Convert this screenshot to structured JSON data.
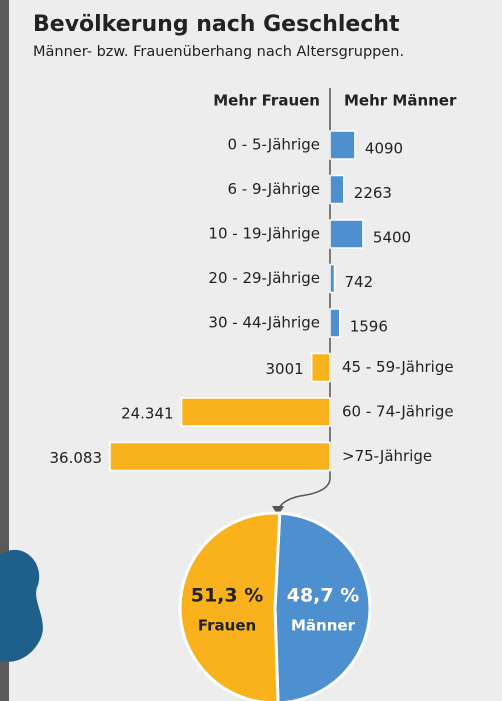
{
  "chart_data": [
    {
      "type": "diverging-bar",
      "title": "Bevölkerung nach Geschlecht",
      "subtitle": "Männer- bzw. Frauenüberhang nach Altersgruppen.",
      "categories": [
        "0 - 5-Jährige",
        "6 - 9-Jährige",
        "10 - 19-Jährige",
        "20 - 29-Jährige",
        "30 - 44-Jährige",
        "45 - 59-Jährige",
        "60 - 74-Jährige",
        ">75-Jährige"
      ],
      "series": [
        {
          "name": "Mehr Frauen",
          "color": "#f9b21c",
          "side": "left",
          "values": [
            null,
            null,
            null,
            null,
            null,
            3001,
            24341,
            36083
          ],
          "value_labels": [
            null,
            null,
            null,
            null,
            null,
            "3001",
            "24.341",
            "36.083"
          ]
        },
        {
          "name": "Mehr Männer",
          "color": "#4e8fd0",
          "side": "right",
          "values": [
            4090,
            2263,
            5400,
            742,
            1596,
            null,
            null,
            null
          ]
        }
      ]
    },
    {
      "type": "pie",
      "categories": [
        "Männer",
        "Frauen"
      ],
      "values": [
        48.7,
        51.3
      ],
      "value_labels": [
        "48,7 %",
        "51,3 %"
      ],
      "colors": [
        "#4e8fd0",
        "#f9b21c"
      ]
    }
  ]
}
